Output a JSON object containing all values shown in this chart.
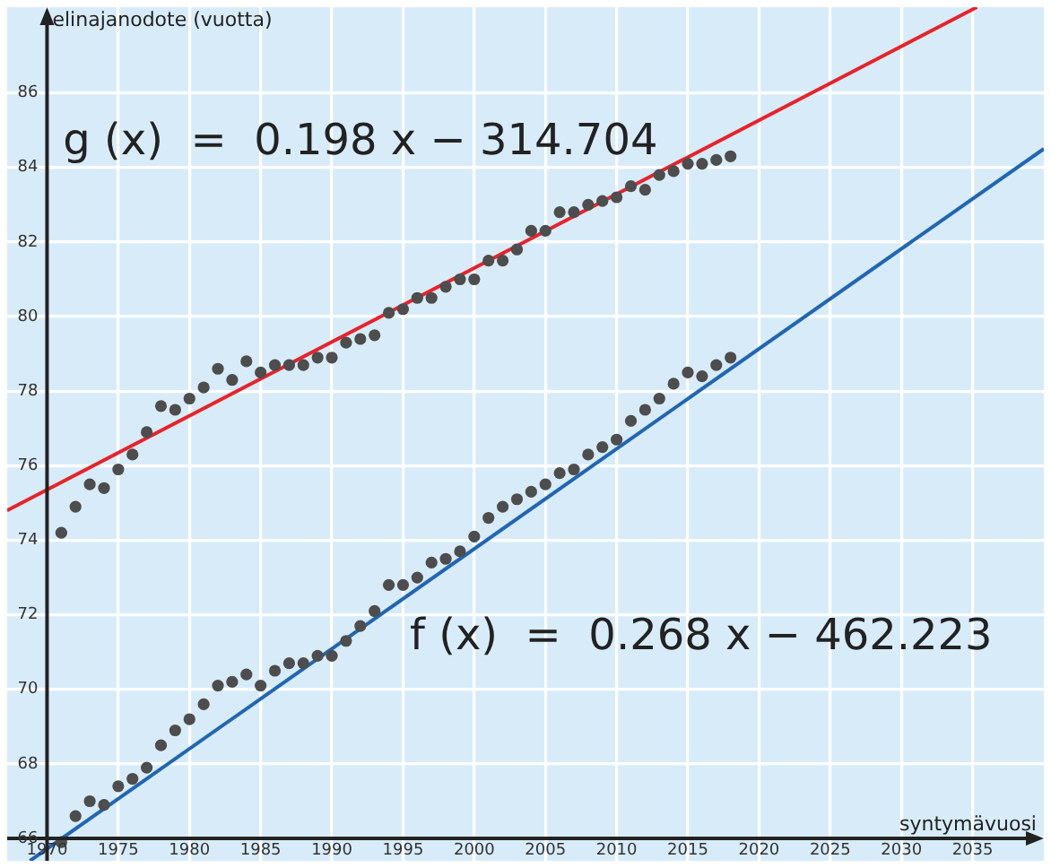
{
  "chart_data": {
    "type": "scatter",
    "xlabel": "syntymävuosi",
    "ylabel": "elinajanodote (vuotta)",
    "xlim": [
      1967.2,
      2040
    ],
    "ylim": [
      65.4,
      88.3
    ],
    "xticks": [
      1970,
      1975,
      1980,
      1985,
      1990,
      1995,
      2000,
      2005,
      2010,
      2015,
      2020,
      2025,
      2030,
      2035
    ],
    "yticks": [
      66,
      68,
      70,
      72,
      74,
      76,
      78,
      80,
      82,
      84,
      86
    ],
    "grid": true,
    "series": [
      {
        "type": "scatter",
        "marker": "circle",
        "color": "#4d4d4d",
        "x": [
          1971,
          1972,
          1973,
          1974,
          1975,
          1976,
          1977,
          1978,
          1979,
          1980,
          1981,
          1982,
          1983,
          1984,
          1985,
          1986,
          1987,
          1988,
          1989,
          1990,
          1991,
          1992,
          1993,
          1994,
          1995,
          1996,
          1997,
          1998,
          1999,
          2000,
          2001,
          2002,
          2003,
          2004,
          2005,
          2006,
          2007,
          2008,
          2009,
          2010,
          2011,
          2012,
          2013,
          2014,
          2015,
          2016,
          2017,
          2018
        ],
        "values": [
          74.2,
          74.9,
          75.5,
          75.4,
          75.9,
          76.3,
          76.9,
          77.6,
          77.5,
          77.8,
          78.1,
          78.6,
          78.3,
          78.8,
          78.5,
          78.7,
          78.7,
          78.7,
          78.9,
          78.9,
          79.3,
          79.4,
          79.5,
          80.1,
          80.2,
          80.5,
          80.5,
          80.8,
          81,
          81,
          81.5,
          81.5,
          81.8,
          82.3,
          82.3,
          82.8,
          82.8,
          83,
          83.1,
          83.2,
          83.5,
          83.4,
          83.8,
          83.9,
          84.1,
          84.1,
          84.2,
          84.3
        ]
      },
      {
        "type": "scatter",
        "marker": "circle",
        "color": "#4d4d4d",
        "x": [
          1971,
          1972,
          1973,
          1974,
          1975,
          1976,
          1977,
          1978,
          1979,
          1980,
          1981,
          1982,
          1983,
          1984,
          1985,
          1986,
          1987,
          1988,
          1989,
          1990,
          1991,
          1992,
          1993,
          1994,
          1995,
          1996,
          1997,
          1998,
          1999,
          2000,
          2001,
          2002,
          2003,
          2004,
          2005,
          2006,
          2007,
          2008,
          2009,
          2010,
          2011,
          2012,
          2013,
          2014,
          2015,
          2016,
          2017,
          2018
        ],
        "values": [
          65.9,
          66.6,
          67,
          66.9,
          67.4,
          67.6,
          67.9,
          68.5,
          68.9,
          69.2,
          69.6,
          70.1,
          70.2,
          70.4,
          70.1,
          70.5,
          70.7,
          70.7,
          70.9,
          70.9,
          71.3,
          71.7,
          72.1,
          72.8,
          72.8,
          73,
          73.4,
          73.5,
          73.7,
          74.1,
          74.6,
          74.9,
          75.1,
          75.3,
          75.5,
          75.8,
          75.9,
          76.3,
          76.5,
          76.7,
          77.2,
          77.5,
          77.8,
          78.2,
          78.5,
          78.4,
          78.7,
          78.9
        ]
      },
      {
        "type": "line",
        "name": "g (x)  =  0.198 x − 314.704",
        "marker": "none",
        "color": "#e8232b",
        "x": [
          1967.2,
          2035.3
        ],
        "values": [
          74.8,
          88.3
        ]
      },
      {
        "type": "line",
        "name": "f (x)  =  0.268 x − 462.223",
        "marker": "none",
        "color": "#2166b3",
        "x": [
          1968.8,
          2040
        ],
        "values": [
          65.4,
          84.5
        ]
      }
    ]
  }
}
